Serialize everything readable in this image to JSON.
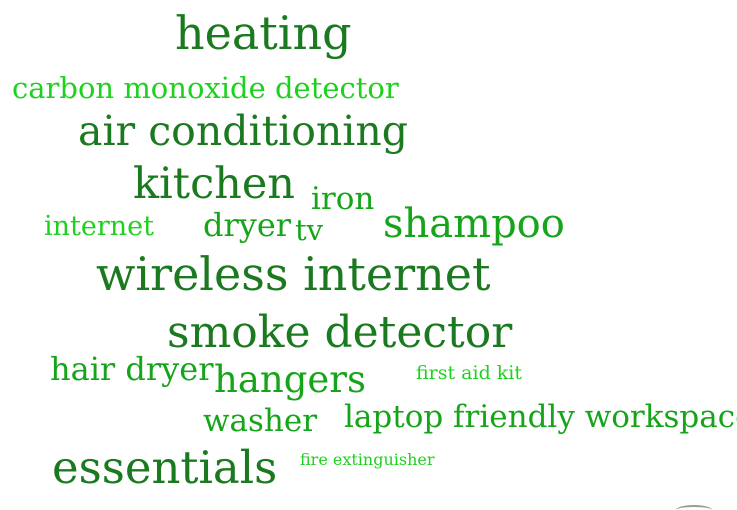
{
  "word_cloud": {
    "words": [
      {
        "id": "heating",
        "text": "heating",
        "shade": "dark"
      },
      {
        "id": "carbon-monoxide-detector",
        "text": "carbon monoxide detector",
        "shade": "light"
      },
      {
        "id": "air-conditioning",
        "text": "air conditioning",
        "shade": "dark"
      },
      {
        "id": "kitchen",
        "text": "kitchen",
        "shade": "dark"
      },
      {
        "id": "iron",
        "text": "iron",
        "shade": "mid"
      },
      {
        "id": "internet",
        "text": "internet",
        "shade": "light"
      },
      {
        "id": "dryer",
        "text": "dryer",
        "shade": "mid"
      },
      {
        "id": "tv",
        "text": "tv",
        "shade": "mid"
      },
      {
        "id": "shampoo",
        "text": "shampoo",
        "shade": "mid"
      },
      {
        "id": "wireless-internet",
        "text": "wireless internet",
        "shade": "dark"
      },
      {
        "id": "smoke-detector",
        "text": "smoke detector",
        "shade": "dark"
      },
      {
        "id": "hair-dryer",
        "text": "hair dryer",
        "shade": "mid"
      },
      {
        "id": "hangers",
        "text": "hangers",
        "shade": "mid"
      },
      {
        "id": "first-aid-kit",
        "text": "first aid kit",
        "shade": "light"
      },
      {
        "id": "washer",
        "text": "washer",
        "shade": "mid"
      },
      {
        "id": "laptop-friendly-workspace",
        "text": "laptop friendly workspace",
        "shade": "mid"
      },
      {
        "id": "essentials",
        "text": "essentials",
        "shade": "dark"
      },
      {
        "id": "fire-extinguisher",
        "text": "fire extinguisher",
        "shade": "light"
      }
    ],
    "colors": {
      "dark": "#1b7a1f",
      "mid": "#16a51a",
      "light": "#1fd11f",
      "background": "#ffffff"
    }
  }
}
